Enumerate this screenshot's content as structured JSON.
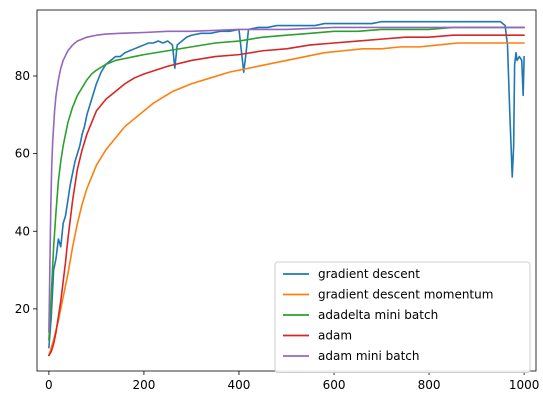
{
  "chart_data": {
    "type": "line",
    "title": "",
    "xlabel": "",
    "ylabel": "",
    "xlim": [
      -25,
      1025
    ],
    "ylim": [
      4,
      97
    ],
    "xticks": [
      0,
      200,
      400,
      600,
      800,
      1000
    ],
    "yticks": [
      20,
      40,
      60,
      80
    ],
    "grid": false,
    "legend_position": "lower-right",
    "series": [
      {
        "name": "gradient descent",
        "color": "#1f77b4",
        "x": [
          0,
          5,
          10,
          15,
          20,
          25,
          30,
          35,
          40,
          45,
          50,
          55,
          60,
          65,
          70,
          75,
          80,
          85,
          90,
          95,
          100,
          110,
          120,
          130,
          140,
          150,
          160,
          170,
          180,
          190,
          200,
          210,
          220,
          230,
          240,
          250,
          260,
          265,
          270,
          280,
          290,
          300,
          320,
          340,
          360,
          380,
          400,
          410,
          415,
          420,
          440,
          460,
          480,
          500,
          520,
          540,
          560,
          580,
          600,
          620,
          640,
          660,
          680,
          700,
          720,
          740,
          760,
          780,
          800,
          820,
          840,
          860,
          880,
          900,
          920,
          940,
          950,
          960,
          965,
          970,
          975,
          978,
          980,
          983,
          985,
          990,
          995,
          998,
          1000
        ],
        "y": [
          10,
          18,
          30,
          33,
          38,
          36,
          42,
          44,
          48,
          52,
          55,
          58,
          60,
          62,
          65,
          67,
          70,
          72,
          74,
          76,
          78,
          81,
          83,
          84,
          85,
          85,
          86,
          86.5,
          87,
          87.5,
          88,
          88.5,
          88.5,
          89,
          88.5,
          89,
          88,
          82,
          88,
          89,
          90,
          90.5,
          91,
          91,
          91.5,
          91.5,
          92,
          81,
          86,
          92,
          92.5,
          92.5,
          93,
          93,
          93,
          93,
          93,
          93.5,
          93.5,
          93.5,
          93.5,
          93.5,
          93.5,
          94,
          94,
          94,
          94,
          94,
          94,
          94,
          94,
          94,
          94,
          94,
          94,
          94,
          94,
          93,
          88,
          70,
          54,
          62,
          83,
          86,
          84,
          85,
          84,
          75,
          85
        ]
      },
      {
        "name": "gradient descent momentum",
        "color": "#ff7f0e",
        "x": [
          0,
          10,
          20,
          30,
          40,
          50,
          60,
          70,
          80,
          90,
          100,
          120,
          140,
          160,
          180,
          200,
          220,
          240,
          260,
          280,
          300,
          340,
          380,
          420,
          460,
          500,
          540,
          580,
          620,
          660,
          700,
          740,
          780,
          820,
          860,
          900,
          940,
          980,
          1000
        ],
        "y": [
          8,
          12,
          17,
          23,
          29,
          36,
          42,
          47,
          51,
          54,
          57,
          61,
          64,
          67,
          69,
          71,
          73,
          74.5,
          76,
          77,
          78,
          79.5,
          81,
          82,
          83,
          84,
          85,
          86,
          86.5,
          87,
          87,
          87.5,
          87.5,
          88,
          88.5,
          88.5,
          88.5,
          88.5,
          88.5
        ]
      },
      {
        "name": "adadelta mini batch",
        "color": "#2ca02c",
        "x": [
          0,
          3,
          6,
          10,
          15,
          20,
          25,
          30,
          35,
          40,
          50,
          60,
          70,
          80,
          90,
          100,
          120,
          140,
          160,
          180,
          200,
          250,
          300,
          350,
          400,
          450,
          500,
          550,
          600,
          650,
          700,
          750,
          800,
          850,
          900,
          950,
          1000
        ],
        "y": [
          12,
          18,
          26,
          36,
          45,
          53,
          58,
          62,
          65,
          68,
          72,
          75,
          77,
          79,
          80.5,
          81.5,
          83,
          84,
          84.5,
          85,
          85.5,
          86.5,
          87.5,
          88.5,
          89,
          90,
          90.5,
          91,
          91.5,
          91.5,
          92,
          92,
          92,
          92.5,
          92.5,
          92.5,
          92.5
        ]
      },
      {
        "name": "adam",
        "color": "#d62728",
        "x": [
          0,
          5,
          10,
          15,
          20,
          25,
          30,
          35,
          40,
          50,
          60,
          70,
          80,
          90,
          100,
          120,
          140,
          160,
          180,
          200,
          250,
          300,
          350,
          400,
          450,
          500,
          550,
          600,
          650,
          700,
          750,
          800,
          850,
          900,
          950,
          1000
        ],
        "y": [
          8,
          9,
          11,
          14,
          18,
          22,
          27,
          32,
          38,
          48,
          56,
          61,
          65,
          68,
          71,
          74,
          76,
          78,
          79.5,
          80.5,
          82.5,
          84,
          85,
          85.5,
          86.5,
          87,
          88,
          88.5,
          89,
          89.5,
          90,
          90,
          90.5,
          90.5,
          90.5,
          90.5
        ]
      },
      {
        "name": "adam mini batch",
        "color": "#9467bd",
        "x": [
          0,
          2,
          4,
          6,
          8,
          10,
          12,
          15,
          20,
          25,
          30,
          40,
          50,
          60,
          70,
          80,
          100,
          120,
          150,
          200,
          250,
          300,
          400,
          500,
          600,
          700,
          800,
          900,
          1000
        ],
        "y": [
          14,
          30,
          46,
          57,
          63,
          67,
          71,
          75,
          79,
          82,
          84,
          86.5,
          88,
          89,
          89.5,
          90,
          90.5,
          90.8,
          91,
          91.2,
          91.5,
          91.5,
          92,
          92,
          92.5,
          92.5,
          92.5,
          92.5,
          92.5
        ]
      }
    ]
  }
}
